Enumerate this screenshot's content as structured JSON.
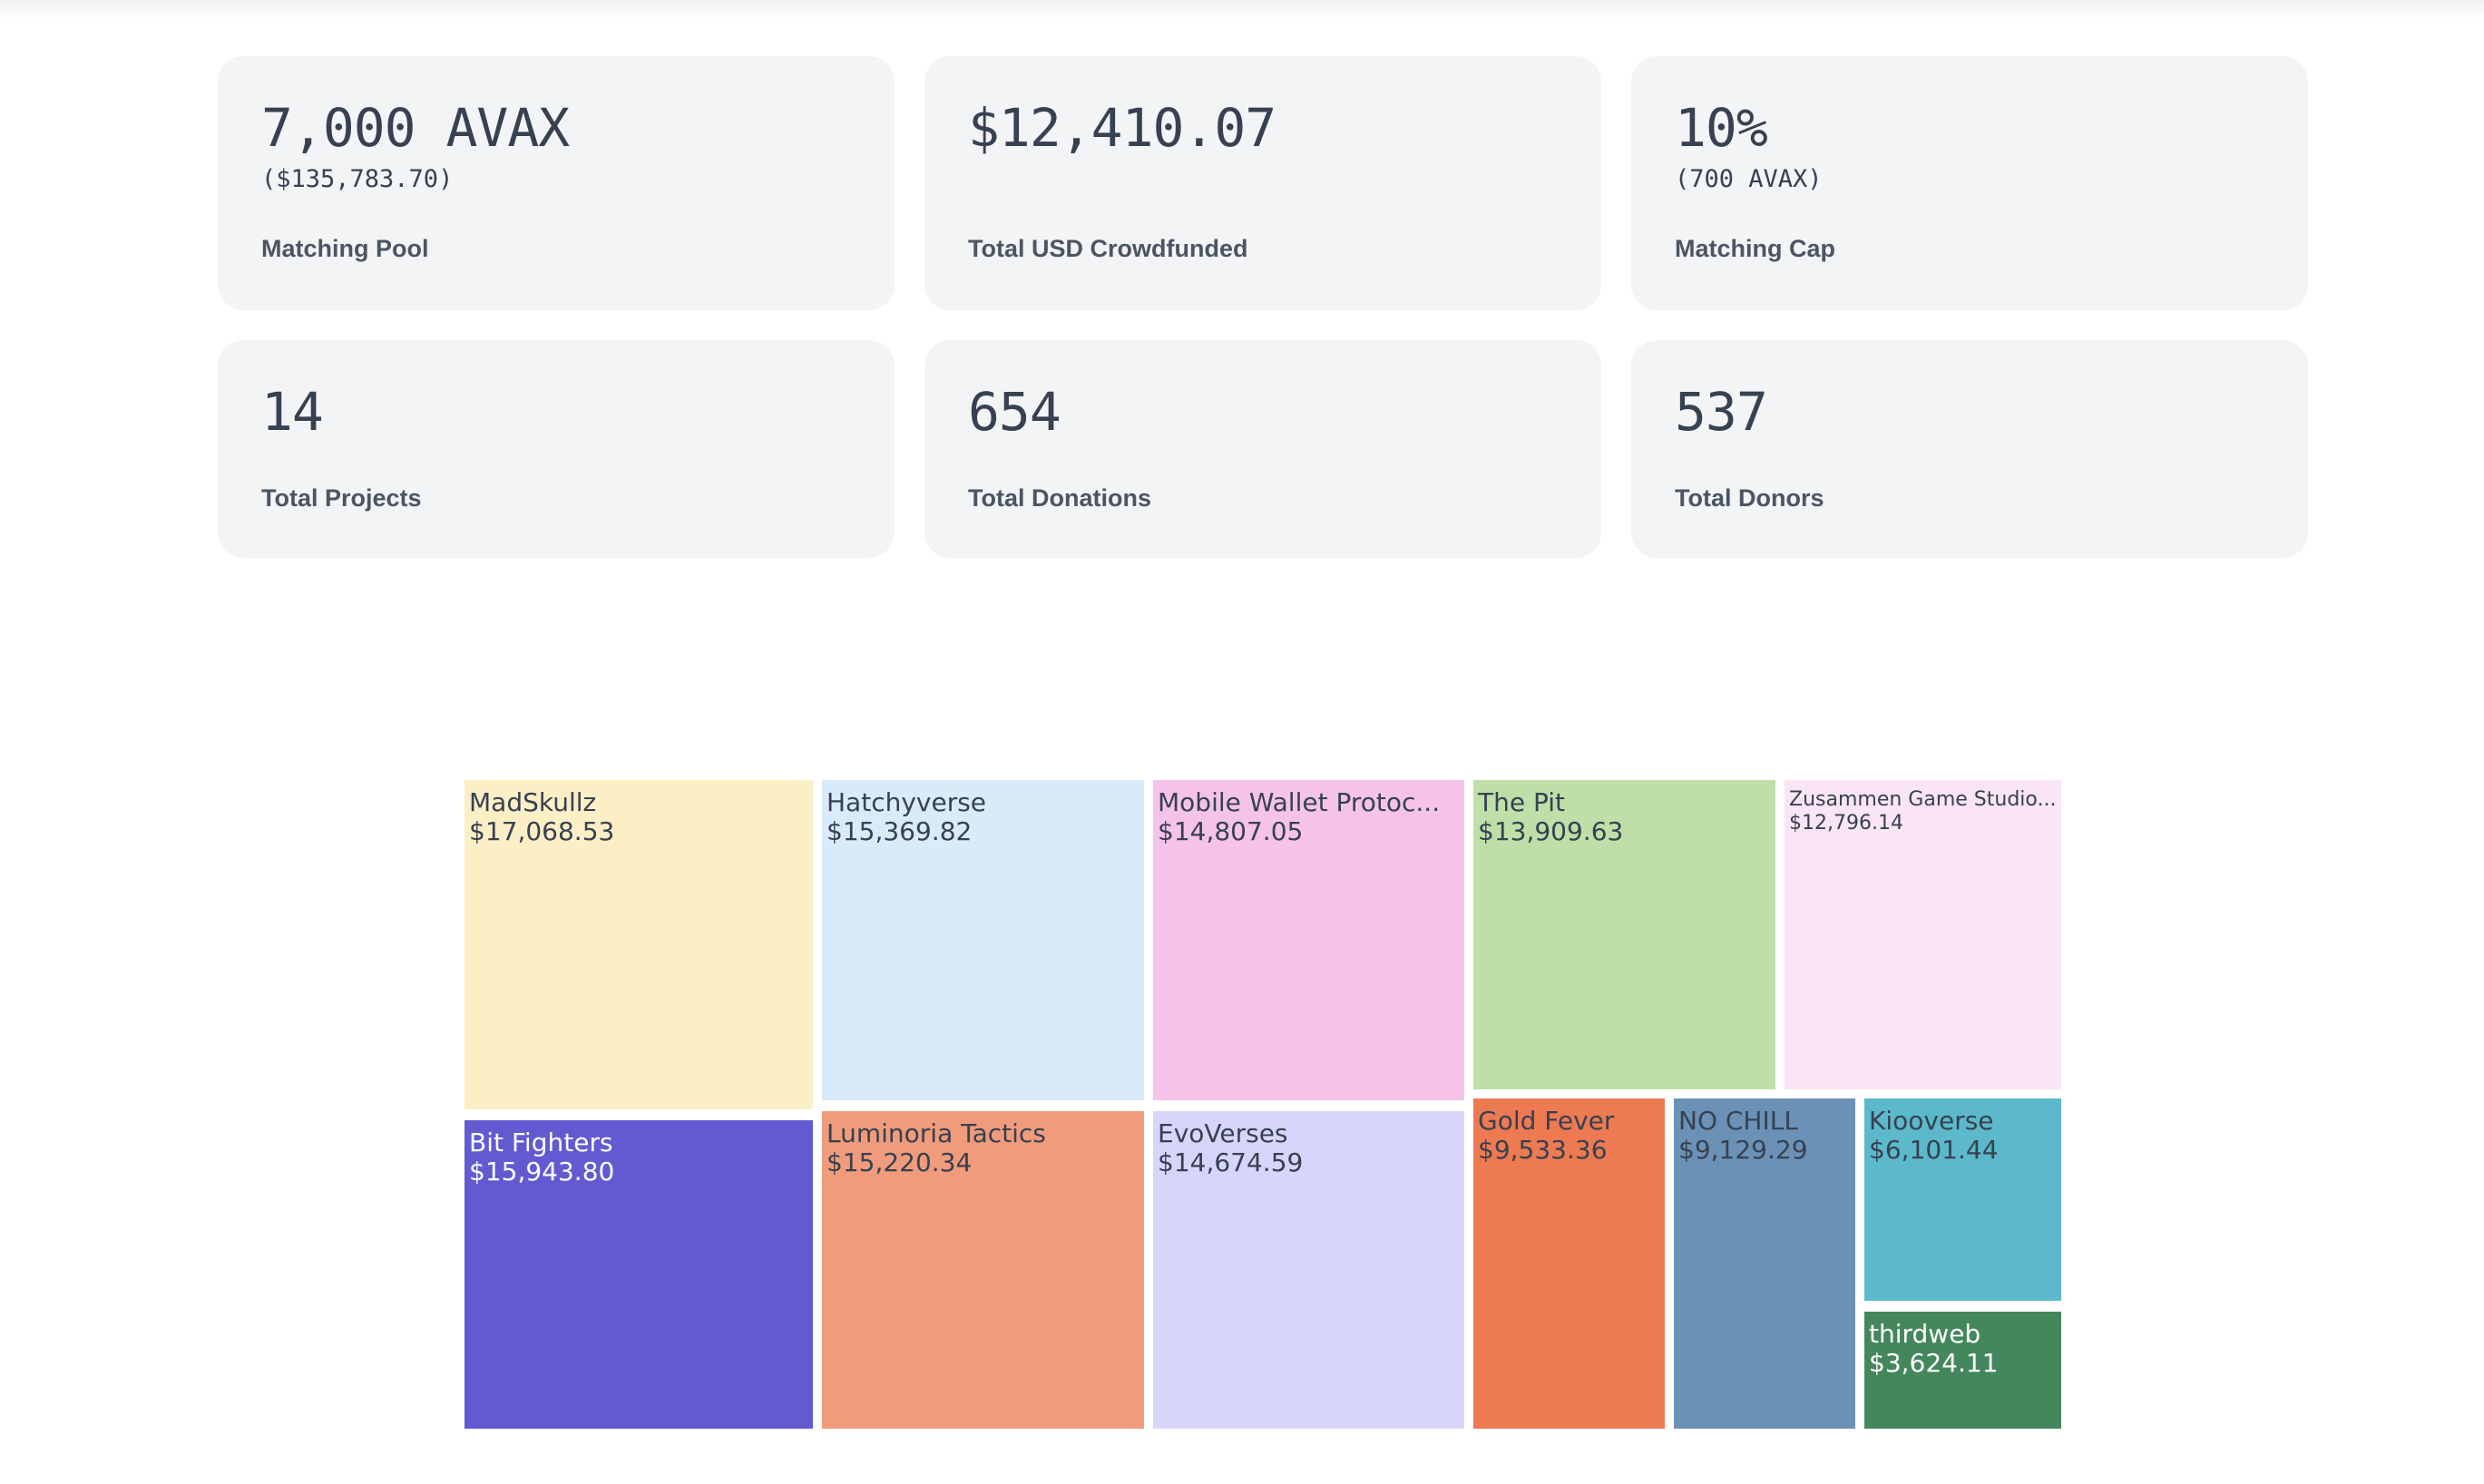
{
  "stats": [
    {
      "value": "7,000 AVAX",
      "sub": "($135,783.70)",
      "label": "Matching Pool"
    },
    {
      "value": "$12,410.07",
      "sub": "",
      "label": "Total USD Crowdfunded"
    },
    {
      "value": "10%",
      "sub": "(700 AVAX)",
      "label": "Matching Cap"
    },
    {
      "value": "14",
      "sub": "",
      "label": "Total Projects"
    },
    {
      "value": "654",
      "sub": "",
      "label": "Total Donations"
    },
    {
      "value": "537",
      "sub": "",
      "label": "Total Donors"
    }
  ],
  "chart_data": {
    "type": "treemap",
    "title": "",
    "items": [
      {
        "name": "MadSkullz",
        "value_label": "$17,068.53",
        "value": 17068.53,
        "color": "#fcefc5",
        "text_color": "#374151"
      },
      {
        "name": "Bit Fighters",
        "value_label": "$15,943.80",
        "value": 15943.8,
        "color": "#625ad1",
        "text_color": "#ffffff"
      },
      {
        "name": "Hatchyverse",
        "value_label": "$15,369.82",
        "value": 15369.82,
        "color": "#d9eaf9",
        "text_color": "#374151"
      },
      {
        "name": "Luminoria Tactics",
        "value_label": "$15,220.34",
        "value": 15220.34,
        "color": "#f09b7b",
        "text_color": "#374151"
      },
      {
        "name": "Mobile Wallet Protoc...",
        "value_label": "$14,807.05",
        "value": 14807.05,
        "color": "#f5c3ea",
        "text_color": "#374151"
      },
      {
        "name": "EvoVerses",
        "value_label": "$14,674.59",
        "value": 14674.59,
        "color": "#d8d5fb",
        "text_color": "#374151"
      },
      {
        "name": "The Pit",
        "value_label": "$13,909.63",
        "value": 13909.63,
        "color": "#bedfa7",
        "text_color": "#374151"
      },
      {
        "name": "Zusammen Game Studio...",
        "value_label": "$12,796.14",
        "value": 12796.14,
        "color": "#f9e5f6",
        "text_color": "#374151"
      },
      {
        "name": "Gold Fever",
        "value_label": "$9,533.36",
        "value": 9533.36,
        "color": "#ee7a52",
        "text_color": "#374151"
      },
      {
        "name": "NO CHILL",
        "value_label": "$9,129.29",
        "value": 9129.29,
        "color": "#6b91b6",
        "text_color": "#374151"
      },
      {
        "name": "Kiooverse",
        "value_label": "$6,101.44",
        "value": 6101.44,
        "color": "#5bb9cb",
        "text_color": "#374151"
      },
      {
        "name": "thirdweb",
        "value_label": "$3,624.11",
        "value": 3624.11,
        "color": "#45875d",
        "text_color": "#ffffff"
      }
    ]
  }
}
